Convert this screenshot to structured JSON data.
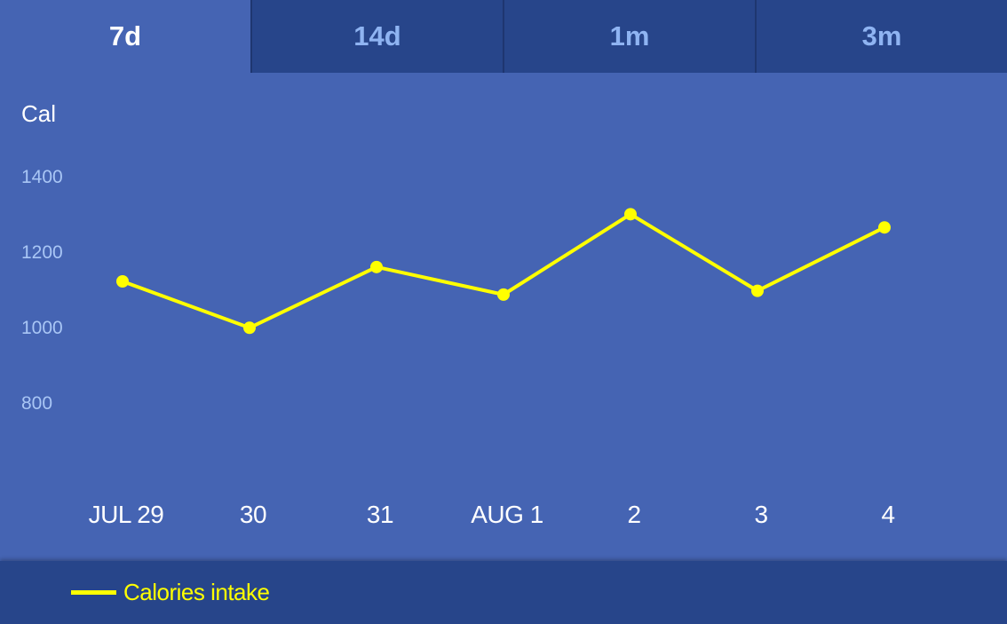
{
  "tabs": [
    {
      "label": "7d",
      "active": true
    },
    {
      "label": "14d",
      "active": false
    },
    {
      "label": "1m",
      "active": false
    },
    {
      "label": "3m",
      "active": false
    }
  ],
  "colors": {
    "background": "#4564b3",
    "tab_bar": "#27458a",
    "tab_inactive_text": "#8fb4f2",
    "tick_text": "#a9c6f5",
    "label_text": "#ffffff",
    "series": "#ffff00"
  },
  "chart_data": {
    "type": "line",
    "ylabel": "Cal",
    "yticks": [
      800,
      1000,
      1200,
      1400
    ],
    "ylim": [
      800,
      1400
    ],
    "categories": [
      "JUL 29",
      "30",
      "31",
      "AUG 1",
      "2",
      "3",
      "4"
    ],
    "series": [
      {
        "name": "Calories intake",
        "values": [
          1120,
          997,
          1158,
          1085,
          1298,
          1095,
          1263
        ]
      }
    ],
    "grid": false,
    "legend": "bottom-left"
  }
}
